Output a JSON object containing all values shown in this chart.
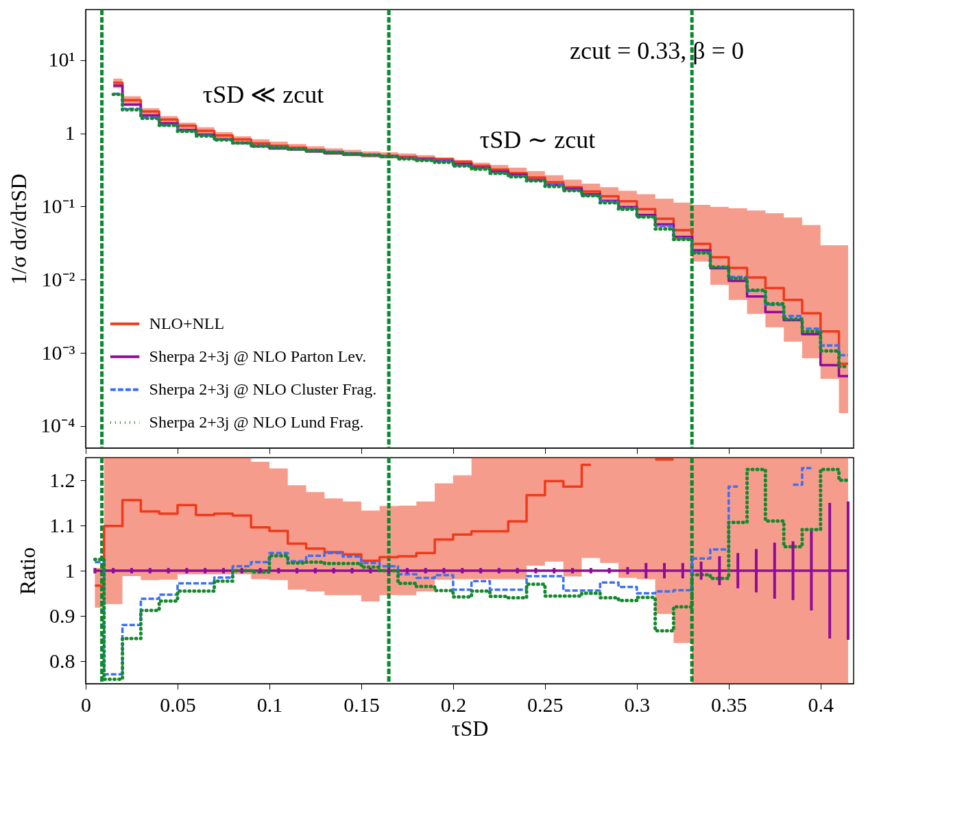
{
  "chart_data": [
    {
      "type": "step",
      "ylabel": "1/σ dσ/dτSD",
      "log": "y",
      "legend": "bottom left",
      "tick_labels": "y",
      "xlim": [
        0,
        0.418
      ],
      "xticks": [
        {
          "value": 0,
          "label": null
        },
        {
          "value": 0.05,
          "label": null
        },
        {
          "value": 0.1,
          "label": null
        },
        {
          "value": 0.15,
          "label": null
        },
        {
          "value": 0.2,
          "label": null
        },
        {
          "value": 0.25,
          "label": null
        },
        {
          "value": 0.3,
          "label": null
        },
        {
          "value": 0.35,
          "label": null
        },
        {
          "value": 0.4,
          "label": null
        }
      ],
      "ylim": [
        5e-05,
        49
      ],
      "yticks": [
        {
          "value": 10,
          "label": "10¹"
        },
        {
          "value": 1,
          "label": "1"
        },
        {
          "value": 0.1,
          "label": "10⁻¹"
        },
        {
          "value": 0.01,
          "label": "10⁻²"
        },
        {
          "value": 0.001,
          "label": "10⁻³"
        },
        {
          "value": 0.0001,
          "label": "10⁻⁴"
        }
      ],
      "x": [
        0.015,
        0.025,
        0.035,
        0.045,
        0.055,
        0.065,
        0.075,
        0.085,
        0.095,
        0.105,
        0.115,
        0.125,
        0.135,
        0.145,
        0.155,
        0.165,
        0.175,
        0.185,
        0.195,
        0.205,
        0.215,
        0.225,
        0.235,
        0.245,
        0.255,
        0.265,
        0.275,
        0.285,
        0.295,
        0.305,
        0.315,
        0.325,
        0.335,
        0.345,
        0.355,
        0.365,
        0.375,
        0.385,
        0.395,
        0.405,
        0.415
      ],
      "series": [
        {
          "name": "NLO+NLL",
          "color": "#ee3a1a",
          "line_style": "solid",
          "values": [
            4.92,
            2.84,
            1.98,
            1.54,
            1.27,
            1.08,
            0.935,
            0.825,
            0.729,
            0.675,
            0.636,
            0.593,
            0.559,
            0.532,
            0.511,
            0.494,
            0.475,
            0.457,
            0.447,
            0.41,
            0.36,
            0.32,
            0.285,
            0.249,
            0.214,
            0.183,
            0.16,
            0.138,
            0.118,
            0.092,
            0.0682,
            0.0475,
            0.0308,
            0.0202,
            0.0145,
            0.0107,
            0.00767,
            0.0053,
            0.00347,
            0.00196,
            0.00071
          ],
          "lower": [
            4.15,
            2.43,
            1.71,
            1.34,
            1.1,
            0.952,
            0.823,
            0.729,
            0.652,
            0.607,
            0.575,
            0.539,
            0.508,
            0.486,
            0.466,
            0.454,
            0.435,
            0.42,
            0.41,
            0.373,
            0.332,
            0.294,
            0.266,
            0.234,
            0.202,
            0.173,
            0.151,
            0.121,
            0.0964,
            0.075,
            0.0513,
            0.0345,
            0.0177,
            0.0085,
            0.0053,
            0.0034,
            0.00223,
            0.00142,
            0.00084,
            0.00044,
            0.00015
          ],
          "upper": [
            5.6,
            3.2,
            2.2,
            1.72,
            1.4,
            1.21,
            1.04,
            0.91,
            0.83,
            0.77,
            0.713,
            0.663,
            0.623,
            0.593,
            0.567,
            0.549,
            0.53,
            0.503,
            0.461,
            0.43,
            0.397,
            0.37,
            0.339,
            0.305,
            0.267,
            0.232,
            0.205,
            0.183,
            0.164,
            0.147,
            0.128,
            0.113,
            0.105,
            0.0988,
            0.0945,
            0.088,
            0.081,
            0.0706,
            0.0557,
            0.0295,
            0.0295
          ]
        },
        {
          "name": "Sherpa 2+3j @ NLO Parton Lev.",
          "color": "#8e0c99",
          "line_style": "solid",
          "values": [
            4.48,
            2.46,
            1.75,
            1.37,
            1.11,
            0.96,
            0.83,
            0.735,
            0.665,
            0.62,
            0.6,
            0.565,
            0.537,
            0.514,
            0.5,
            0.48,
            0.46,
            0.44,
            0.418,
            0.38,
            0.338,
            0.3,
            0.271,
            0.231,
            0.198,
            0.175,
            0.147,
            0.119,
            0.098,
            0.0764,
            0.0568,
            0.0385,
            0.0252,
            0.0143,
            0.0096,
            0.0059,
            0.0036,
            0.0028,
            0.0018,
            0.00068,
            0.00048
          ]
        },
        {
          "name": "Sherpa 2+3j @ NLO Cluster Frag.",
          "color": "#3a6ff7",
          "line_style": "dashed",
          "values": [
            3.45,
            2.16,
            1.64,
            1.3,
            1.08,
            0.933,
            0.818,
            0.742,
            0.678,
            0.644,
            0.613,
            0.584,
            0.558,
            0.53,
            0.509,
            0.485,
            0.456,
            0.433,
            0.414,
            0.364,
            0.33,
            0.287,
            0.26,
            0.228,
            0.196,
            0.167,
            0.141,
            0.116,
            0.0945,
            0.0726,
            0.0542,
            0.0368,
            0.0237,
            0.0149,
            0.0109,
            0.007,
            0.00453,
            0.00318,
            0.00214,
            0.00126,
            0.00093
          ]
        },
        {
          "name": "Sherpa 2+3j @ NLO Lund Frag.",
          "color": "#138a2c",
          "line_style": "dotted",
          "values": [
            3.4,
            2.09,
            1.6,
            1.28,
            1.06,
            0.917,
            0.811,
            0.735,
            0.663,
            0.64,
            0.61,
            0.576,
            0.546,
            0.522,
            0.504,
            0.48,
            0.447,
            0.425,
            0.4,
            0.358,
            0.323,
            0.283,
            0.255,
            0.224,
            0.187,
            0.165,
            0.14,
            0.112,
            0.0915,
            0.0719,
            0.0492,
            0.0354,
            0.0232,
            0.0149,
            0.0104,
            0.0072,
            0.0047,
            0.0029,
            0.00196,
            0.00106,
            0.00065
          ]
        }
      ],
      "ref_lines": [
        {
          "axis": "x",
          "value": 0.0088,
          "color": "#0a8a2e",
          "line_style": "dashed"
        },
        {
          "axis": "x",
          "value": 0.165,
          "color": "#0a8a2e",
          "line_style": "dashed"
        },
        {
          "axis": "x",
          "value": 0.33,
          "color": "#0a8a2e",
          "line_style": "dashed"
        }
      ],
      "annotations": [
        "zcut = 0.33,  β = 0",
        "τSD ≪ zcut",
        "τSD ∼ zcut"
      ]
    },
    {
      "type": "step",
      "ylabel": "Ratio",
      "xlabel": "τSD",
      "xlim": [
        0,
        0.418
      ],
      "xticks": [
        0,
        0.05,
        0.1,
        0.15,
        0.2,
        0.25,
        0.3,
        0.35,
        0.4
      ],
      "ylim": [
        0.75,
        1.25
      ],
      "yticks": [
        0.8,
        0.9,
        1,
        1.1,
        1.2
      ],
      "x": [
        0.005,
        0.015,
        0.025,
        0.035,
        0.045,
        0.055,
        0.065,
        0.075,
        0.085,
        0.095,
        0.105,
        0.115,
        0.125,
        0.135,
        0.145,
        0.155,
        0.165,
        0.175,
        0.185,
        0.195,
        0.205,
        0.215,
        0.225,
        0.235,
        0.245,
        0.255,
        0.265,
        0.275,
        0.285,
        0.295,
        0.305,
        0.315,
        0.325,
        0.335,
        0.345,
        0.355,
        0.365,
        0.375,
        0.385,
        0.395,
        0.405,
        0.415
      ],
      "series": [
        {
          "color": "#ee3a1a",
          "line_style": "solid",
          "values": [
            0.967,
            1.099,
            1.156,
            1.131,
            1.126,
            1.145,
            1.123,
            1.126,
            1.122,
            1.096,
            1.088,
            1.06,
            1.049,
            1.041,
            1.036,
            1.022,
            1.03,
            1.032,
            1.039,
            1.069,
            1.08,
            1.087,
            1.087,
            1.109,
            1.167,
            1.198,
            1.186,
            1.234,
            null,
            null,
            null,
            null,
            null,
            null,
            null,
            null,
            null,
            null,
            null,
            null,
            null,
            null
          ],
          "lower": [
            0.918,
            0.926,
            0.988,
            0.979,
            0.98,
            0.992,
            0.992,
            0.992,
            0.992,
            0.981,
            0.979,
            0.958,
            0.954,
            0.946,
            0.946,
            0.932,
            0.946,
            0.946,
            0.954,
            0.98,
            0.981,
            0.981,
            0.981,
            0.981,
            1.011,
            1.02,
            0.987,
            1.028,
            1.017,
            0.984,
            0.981,
            0.904,
            0.84,
            0.75,
            0.75,
            0.75,
            0.75,
            0.75,
            0.75,
            0.75,
            0.75,
            0.75
          ],
          "upper": [
            1.006,
            1.25,
            1.25,
            1.25,
            1.25,
            1.25,
            1.25,
            1.25,
            1.25,
            1.241,
            1.226,
            1.189,
            1.174,
            1.16,
            1.153,
            1.133,
            1.143,
            1.144,
            1.153,
            1.193,
            1.211,
            1.25,
            1.25,
            1.25,
            1.25,
            1.25,
            1.25,
            1.25,
            1.25,
            1.25,
            1.25,
            1.25,
            1.25,
            1.25,
            1.25,
            1.25,
            1.25,
            1.25,
            1.25,
            1.25,
            1.25,
            1.25
          ]
        },
        {
          "type": "line",
          "color": "#ee3a1a",
          "line_style": "solid",
          "x": [
            0.31,
            0.32
          ],
          "values": [
            1.246,
            1.246
          ]
        },
        {
          "color": "#8e0c99",
          "line_style": "solid",
          "values": [
            1,
            1,
            1,
            1,
            1,
            1,
            1,
            1,
            1,
            1,
            1,
            1,
            1,
            1,
            1,
            1,
            1,
            1,
            1,
            1,
            1,
            1,
            1,
            1,
            1,
            1,
            1,
            1,
            1,
            1,
            1,
            1,
            1,
            1,
            1,
            1,
            1,
            1,
            1,
            1,
            1,
            1
          ],
          "errors": [
            0.006,
            0.006,
            0.006,
            0.006,
            0.006,
            0.006,
            0.006,
            0.006,
            0.006,
            0.006,
            0.006,
            0.006,
            0.006,
            0.006,
            0.006,
            0.006,
            0.006,
            0.006,
            0.006,
            0.006,
            0.006,
            0.006,
            0.006,
            0.006,
            0.006,
            0.006,
            0.006,
            0.006,
            0.006,
            0.008,
            0.017,
            0.017,
            0.017,
            0.02,
            0.032,
            0.039,
            0.048,
            0.062,
            0.065,
            0.088,
            0.15,
            0.153
          ]
        },
        {
          "color": "#3a6ff7",
          "line_style": "dashed",
          "values": [
            1.019,
            0.771,
            0.88,
            0.938,
            0.947,
            0.972,
            0.972,
            0.985,
            1.01,
            1.019,
            1.039,
            1.021,
            1.033,
            1.039,
            1.031,
            1.017,
            1.01,
            0.992,
            0.984,
            0.99,
            0.958,
            0.977,
            0.958,
            0.958,
            0.988,
            0.988,
            0.956,
            0.956,
            0.974,
            0.964,
            0.95,
            0.954,
            0.957,
            1.027,
            1.047,
            1.186,
            null,
            null,
            1.19,
            1.227,
            null,
            null
          ]
        },
        {
          "color": "#138a2c",
          "line_style": "dotted",
          "values": [
            1.025,
            0.76,
            0.85,
            0.912,
            0.933,
            0.955,
            0.955,
            0.977,
            1.0,
            0.997,
            1.033,
            1.017,
            1.019,
            1.016,
            1.016,
            1.008,
            1.0,
            0.972,
            0.965,
            0.956,
            0.942,
            0.955,
            0.943,
            0.94,
            0.97,
            0.944,
            0.944,
            0.95,
            0.94,
            0.934,
            0.941,
            0.867,
            0.92,
            0.991,
            0.983,
            1.107,
            1.224,
            1.11,
            1.053,
            1.091,
            1.224,
            1.2
          ]
        }
      ],
      "ref_lines": [
        {
          "axis": "x",
          "value": 0.0088,
          "color": "#0a8a2e",
          "line_style": "dashed"
        },
        {
          "axis": "x",
          "value": 0.165,
          "color": "#0a8a2e",
          "line_style": "dashed"
        },
        {
          "axis": "x",
          "value": 0.33,
          "color": "#0a8a2e",
          "line_style": "dashed"
        }
      ]
    }
  ]
}
